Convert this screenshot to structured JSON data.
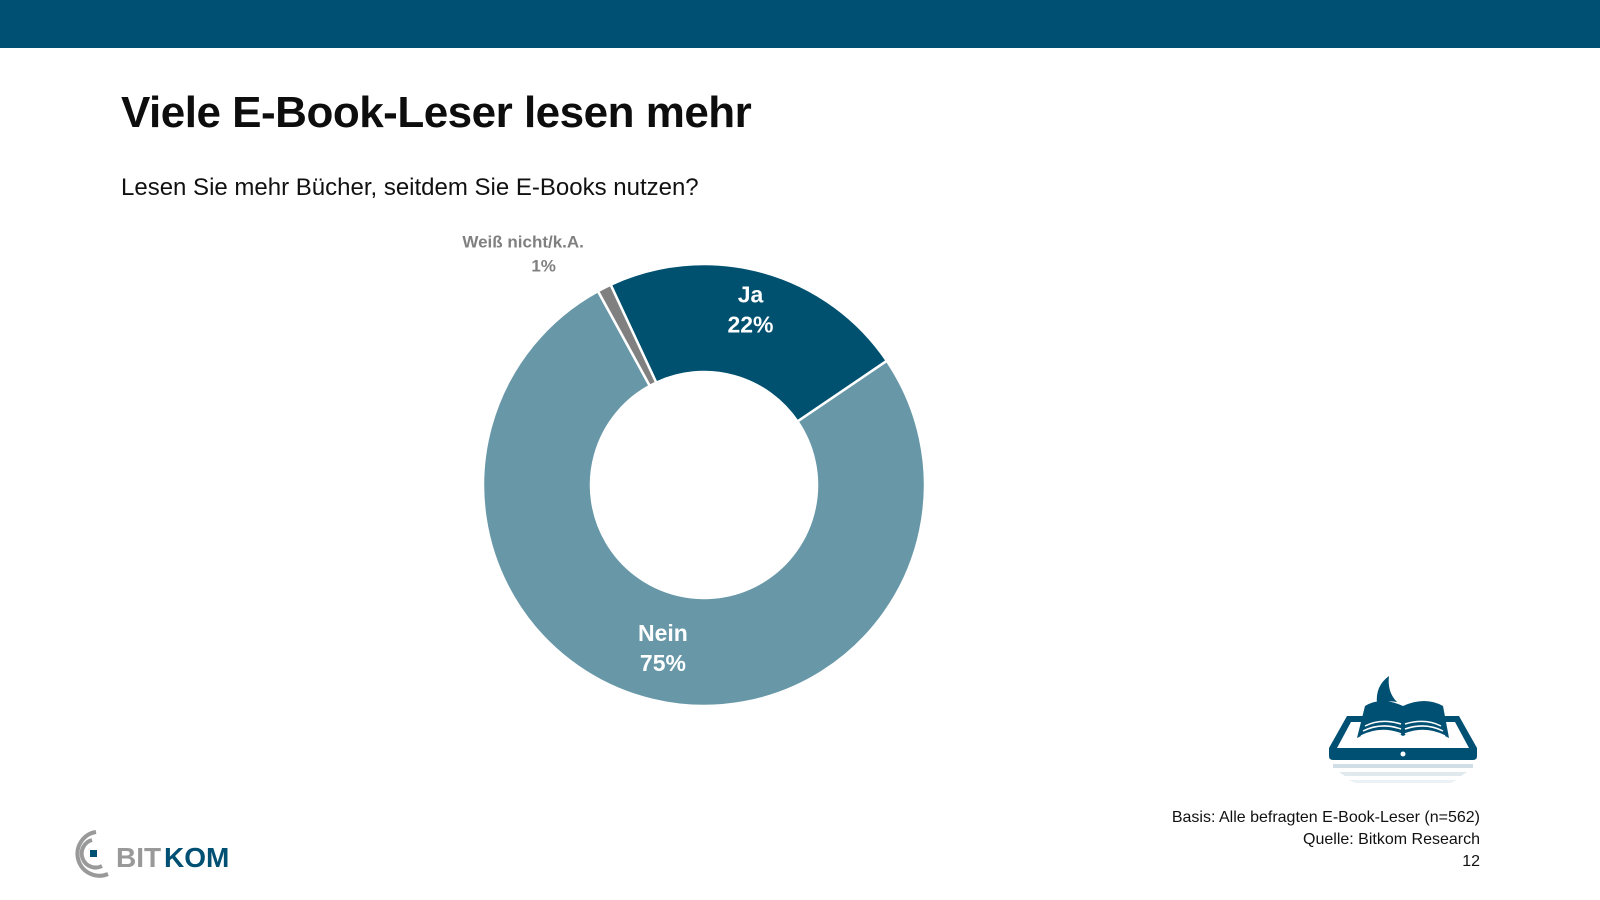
{
  "header": {
    "title": "Viele E-Book-Leser lesen mehr",
    "subtitle": "Lesen Sie mehr Bücher, seitdem Sie E-Books nutzen?"
  },
  "chart_data": {
    "type": "pie",
    "variant": "donut",
    "slices": [
      {
        "label": "Ja",
        "value": 22,
        "value_label": "22%",
        "color": "#00506f"
      },
      {
        "label": "Nein",
        "value": 75,
        "value_label": "75%",
        "color": "#6898a8"
      },
      {
        "label": "Weiß nicht/k.A.",
        "value": 1,
        "value_label": "1%",
        "color": "#808080"
      }
    ]
  },
  "footer": {
    "basis": "Basis: Alle befragten E-Book-Leser (n=562)",
    "source": "Quelle: Bitkom Research",
    "page_number": "12"
  },
  "logo": {
    "bit": "BIT",
    "kom": "KOM",
    "color_dark": "#005073",
    "color_grey": "#999999"
  },
  "colors": {
    "brand": "#005073"
  }
}
